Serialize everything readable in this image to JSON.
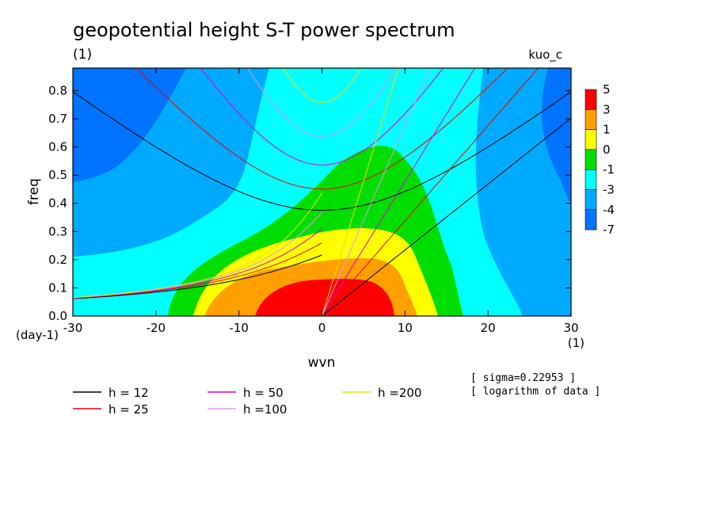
{
  "chart_data": {
    "type": "heatmap",
    "title": "geopotential height S-T power spectrum",
    "subtitle_left": "(1)",
    "subtitle_right": "kuo_c",
    "xlabel": "wvn",
    "ylabel": "freq",
    "x_unit": "(1)",
    "y_unit": "(day-1)",
    "xlim": [
      -30,
      30
    ],
    "ylim": [
      0,
      0.88
    ],
    "x_ticks": [
      -30,
      -20,
      -10,
      0,
      10,
      20,
      30
    ],
    "x_tick_labels": [
      "-30",
      "-20",
      "-10",
      "0",
      "10",
      "20",
      "30"
    ],
    "y_ticks": [
      0,
      0.1,
      0.2,
      0.3,
      0.4,
      0.5,
      0.6,
      0.7,
      0.8
    ],
    "y_tick_labels": [
      "0.0",
      "0.1",
      "0.2",
      "0.3",
      "0.4",
      "0.5",
      "0.6",
      "0.7",
      "0.8"
    ],
    "colorbar": {
      "levels": [
        "5",
        "3",
        "1",
        "0",
        "-1",
        "-3",
        "-4",
        "-7"
      ],
      "colors": [
        "#ff0000",
        "#ff9f00",
        "#ffff00",
        "#00dd00",
        "#00ffff",
        "#00aaff",
        "#0073ff"
      ]
    },
    "contour_regions": [
      {
        "level": "-4",
        "color": "#0073ff",
        "description": "upper-left and right edge"
      },
      {
        "level": "-3",
        "color": "#00aaff",
        "description": "background"
      },
      {
        "level": "-1",
        "color": "#00ffff",
        "description": "central band"
      },
      {
        "level": "0",
        "color": "#00dd00",
        "description": "low-frequency core"
      },
      {
        "level": "1",
        "color": "#ffff00",
        "description": "inner core"
      },
      {
        "level": "3",
        "color": "#ff9f00",
        "description": "inner core"
      },
      {
        "level": "5",
        "color": "#ff0000",
        "description": "peak near wvn 3, freq 0.05"
      }
    ],
    "series": [
      {
        "name": "h = 12",
        "equivalent_depth": 12,
        "color": "#000000"
      },
      {
        "name": "h = 25",
        "equivalent_depth": 25,
        "color": "#ee0000"
      },
      {
        "name": "h = 50",
        "equivalent_depth": 50,
        "color": "#dd00cc"
      },
      {
        "name": "h =100",
        "equivalent_depth": 100,
        "color": "#dd99ee"
      },
      {
        "name": "h =200",
        "equivalent_depth": 200,
        "color": "#eedd00"
      }
    ],
    "annotations": [
      "[ sigma=0.22953 ]",
      "[ logarithm of data ]"
    ],
    "grid": false,
    "legend_position": "bottom-left"
  }
}
